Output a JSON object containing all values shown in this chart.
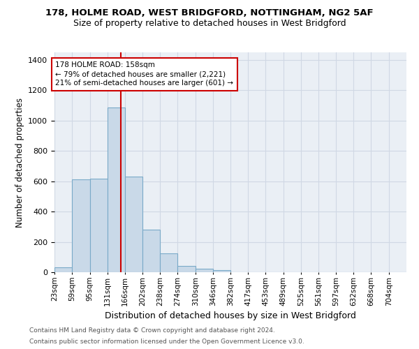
{
  "title_line1": "178, HOLME ROAD, WEST BRIDGFORD, NOTTINGHAM, NG2 5AF",
  "title_line2": "Size of property relative to detached houses in West Bridgford",
  "xlabel": "Distribution of detached houses by size in West Bridgford",
  "ylabel": "Number of detached properties",
  "footer_line1": "Contains HM Land Registry data © Crown copyright and database right 2024.",
  "footer_line2": "Contains public sector information licensed under the Open Government Licence v3.0.",
  "bin_edges": [
    23,
    59,
    95,
    131,
    166,
    202,
    238,
    274,
    310,
    346,
    382,
    417,
    453,
    489,
    525,
    561,
    597,
    632,
    668,
    704,
    740
  ],
  "bar_heights": [
    30,
    610,
    615,
    1085,
    630,
    280,
    125,
    42,
    25,
    15,
    0,
    0,
    0,
    0,
    0,
    0,
    0,
    0,
    0,
    0
  ],
  "bar_color": "#c9d9e8",
  "bar_edge_color": "#7aaac8",
  "grid_color": "#d0d8e4",
  "bg_color": "#eaeff5",
  "property_size": 158,
  "vline_color": "#cc0000",
  "ann_line1": "178 HOLME ROAD: 158sqm",
  "ann_line2": "← 79% of detached houses are smaller (2,221)",
  "ann_line3": "21% of semi-detached houses are larger (601) →",
  "annotation_box_color": "#cc0000",
  "ylim": [
    0,
    1450
  ],
  "yticks": [
    0,
    200,
    400,
    600,
    800,
    1000,
    1200,
    1400
  ],
  "title1_fontsize": 9.5,
  "title2_fontsize": 9.0,
  "ylabel_fontsize": 8.5,
  "xlabel_fontsize": 9.0,
  "tick_fontsize": 7.5,
  "footer_fontsize": 6.5
}
